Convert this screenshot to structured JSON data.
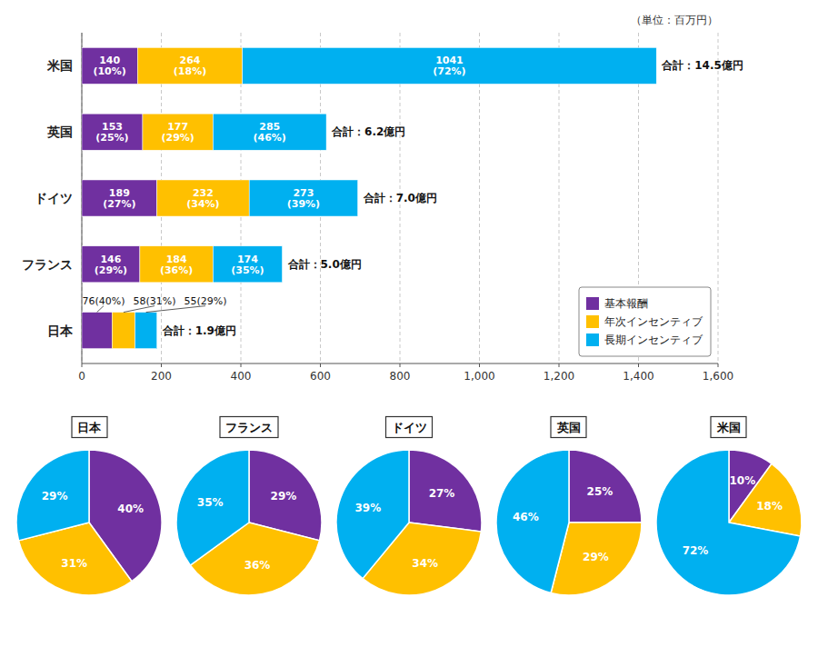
{
  "chart_data": [
    {
      "type": "bar",
      "orientation": "horizontal",
      "stacked": true,
      "categories": [
        "米国",
        "英国",
        "ドイツ",
        "フランス",
        "日本"
      ],
      "series": [
        {
          "name": "基本報酬",
          "color": "#7030A0",
          "values": [
            140,
            153,
            189,
            146,
            76
          ],
          "value_labels": [
            "140\n(10%)",
            "153\n(25%)",
            "189\n(27%)",
            "146\n(29%)",
            "76(40%)"
          ]
        },
        {
          "name": "年次インセンティブ",
          "color": "#FFC000",
          "values": [
            264,
            177,
            232,
            184,
            58
          ],
          "value_labels": [
            "264\n(18%)",
            "177\n(29%)",
            "232\n(34%)",
            "184\n(36%)",
            "58(31%)"
          ]
        },
        {
          "name": "長期インセンティブ",
          "color": "#00B0F0",
          "values": [
            1041,
            285,
            273,
            174,
            55
          ],
          "value_labels": [
            "1041\n(72%)",
            "285\n(46%)",
            "273\n(39%)",
            "174\n(35%)",
            "55(29%)"
          ]
        }
      ],
      "annotations": [
        "合計：14.5億円",
        "合計：6.2億円",
        "合計：7.0億円",
        "合計：5.0億円",
        "合計：1.9億円"
      ],
      "xlabel": "（単位：百万円）",
      "xlim": [
        0,
        1600
      ],
      "xticks": [
        0,
        200,
        400,
        600,
        800,
        {
          "value": 1000,
          "label": "1,000"
        },
        {
          "value": 1200,
          "label": "1,200"
        },
        {
          "value": 1400,
          "label": "1,400"
        },
        {
          "value": 1600,
          "label": "1,600"
        }
      ],
      "grid": true,
      "legend": "lower right",
      "data_labels": true
    },
    {
      "type": "pie",
      "title": "日本",
      "values": [
        40,
        31,
        29
      ],
      "value_labels": [
        "40%",
        "31%",
        "29%"
      ],
      "colors": [
        "#7030A0",
        "#FFC000",
        "#00B0F0"
      ],
      "data_labels": true
    },
    {
      "type": "pie",
      "title": "フランス",
      "values": [
        29,
        36,
        35
      ],
      "value_labels": [
        "29%",
        "36%",
        "35%"
      ],
      "colors": [
        "#7030A0",
        "#FFC000",
        "#00B0F0"
      ],
      "data_labels": true
    },
    {
      "type": "pie",
      "title": "ドイツ",
      "values": [
        27,
        34,
        39
      ],
      "value_labels": [
        "27%",
        "34%",
        "39%"
      ],
      "colors": [
        "#7030A0",
        "#FFC000",
        "#00B0F0"
      ],
      "data_labels": true
    },
    {
      "type": "pie",
      "title": "英国",
      "values": [
        25,
        29,
        46
      ],
      "value_labels": [
        "25%",
        "29%",
        "46%"
      ],
      "colors": [
        "#7030A0",
        "#FFC000",
        "#00B0F0"
      ],
      "data_labels": true
    },
    {
      "type": "pie",
      "title": "米国",
      "values": [
        10,
        18,
        72
      ],
      "value_labels": [
        "10%",
        "18%",
        "72%"
      ],
      "colors": [
        "#7030A0",
        "#FFC000",
        "#00B0F0"
      ],
      "data_labels": true
    }
  ]
}
